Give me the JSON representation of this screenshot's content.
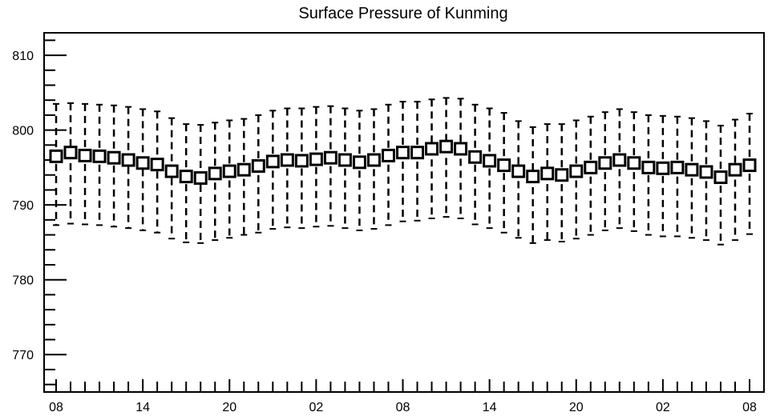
{
  "chart_data": {
    "type": "boxplot",
    "title": "Surface Pressure of Kunming",
    "xlabel": "",
    "ylabel": "",
    "ylim": [
      765,
      813
    ],
    "y_ticks": [
      770,
      780,
      790,
      800,
      810
    ],
    "x_tick_labels": [
      "08",
      "14",
      "20",
      "02",
      "08",
      "14",
      "20",
      "02",
      "08"
    ],
    "grid": false,
    "series": [
      {
        "box_mid": [
          796.5,
          797.0,
          796.6,
          796.5,
          796.3,
          796.0,
          795.6,
          795.4,
          794.5,
          793.8,
          793.6,
          794.2,
          794.5,
          794.7,
          795.2,
          795.8,
          796.0,
          795.9,
          796.1,
          796.3,
          796.0,
          795.7,
          796.0,
          796.6,
          797.0,
          797.0,
          797.5,
          797.8,
          797.5,
          796.4,
          795.9,
          795.3,
          794.5,
          793.8,
          794.2,
          794.0,
          794.5,
          795.0,
          795.6,
          796.0,
          795.6,
          795.0,
          794.9,
          795.0,
          794.7,
          794.4,
          793.7,
          794.7,
          795.3
        ],
        "whisker_high": [
          803.5,
          803.6,
          803.5,
          803.4,
          803.3,
          803.1,
          802.8,
          802.5,
          801.6,
          800.8,
          800.7,
          801.0,
          801.3,
          801.5,
          802.0,
          802.6,
          802.9,
          802.9,
          803.1,
          803.2,
          802.9,
          802.6,
          802.8,
          803.4,
          803.8,
          803.8,
          804.1,
          804.3,
          804.2,
          803.4,
          802.9,
          802.3,
          801.2,
          800.4,
          800.8,
          800.8,
          801.3,
          801.8,
          802.4,
          802.8,
          802.4,
          802.0,
          801.9,
          801.8,
          801.6,
          801.2,
          800.6,
          801.4,
          802.2
        ],
        "whisker_low": [
          787.3,
          787.5,
          787.4,
          787.3,
          787.1,
          786.9,
          786.6,
          786.3,
          785.5,
          785.0,
          784.9,
          785.3,
          785.6,
          786.0,
          786.3,
          786.8,
          787.0,
          786.9,
          787.1,
          787.2,
          786.9,
          786.6,
          786.8,
          787.3,
          787.8,
          787.9,
          788.2,
          788.4,
          788.2,
          787.4,
          786.9,
          786.3,
          785.6,
          784.9,
          785.3,
          785.1,
          785.5,
          786.0,
          786.6,
          786.9,
          786.5,
          786.0,
          785.8,
          785.8,
          785.6,
          785.3,
          784.7,
          785.3,
          786.1
        ]
      }
    ]
  }
}
